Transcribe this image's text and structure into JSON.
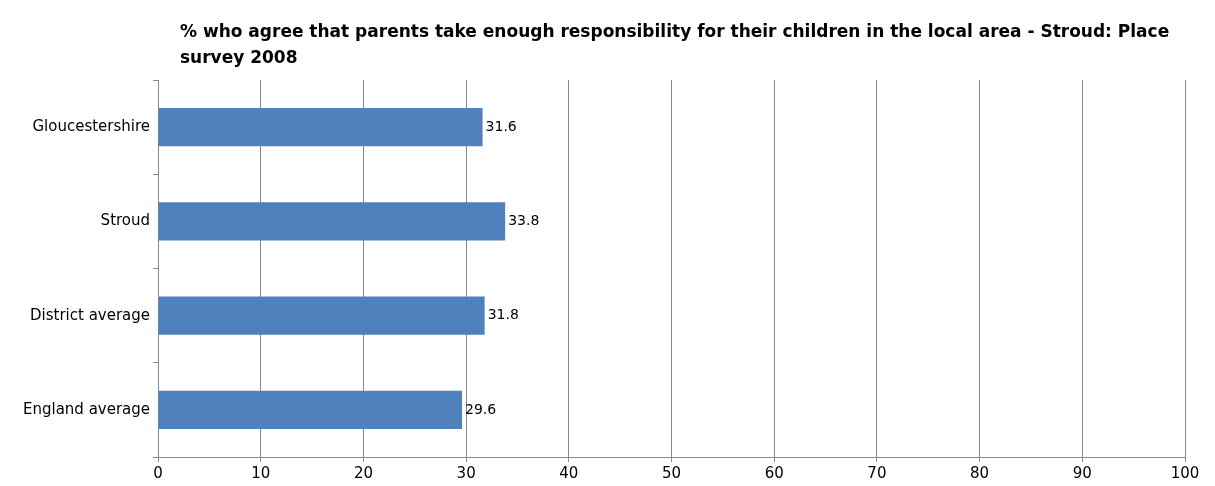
{
  "chart_data": {
    "type": "bar",
    "orientation": "horizontal",
    "title": "%  who agree that parents take enough responsibility for their children in the local area - Stroud: Place survey 2008",
    "categories": [
      "Gloucestershire",
      "Stroud",
      "District average",
      "England average"
    ],
    "values": [
      31.6,
      33.8,
      31.8,
      29.6
    ],
    "color": "#4f81bd",
    "xlim": [
      0,
      100
    ],
    "xticks": [
      0,
      10,
      20,
      30,
      40,
      50,
      60,
      70,
      80,
      90,
      100
    ],
    "grid": "x",
    "data_labels": true
  }
}
